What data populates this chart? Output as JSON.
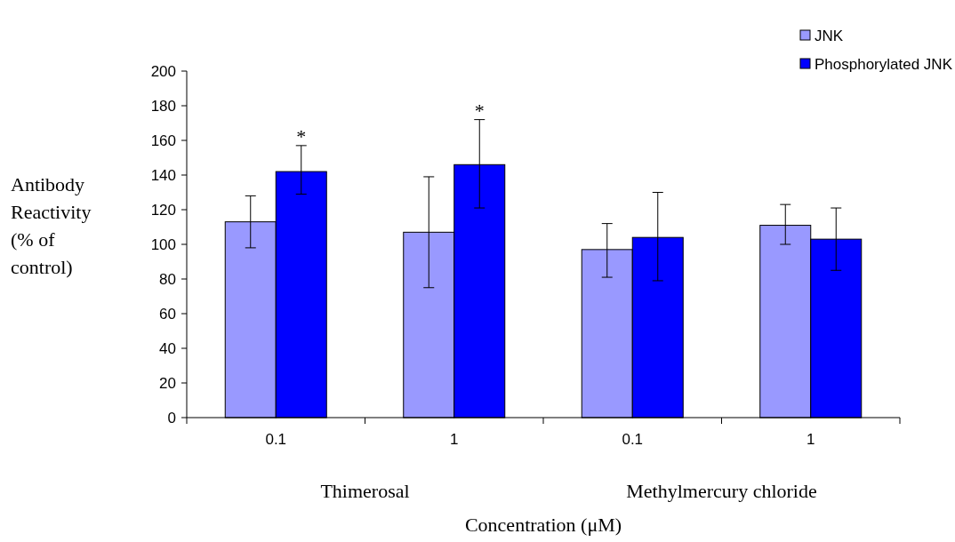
{
  "chart_data": {
    "type": "bar",
    "xlabel": "Concentration (μM)",
    "ylabel": "Antibody Reactivity (% of control)",
    "categories": [
      "0.1",
      "1",
      "0.1",
      "1"
    ],
    "series": [
      {
        "name": "JNK",
        "color": "#9999ff",
        "values": [
          113,
          107,
          97,
          111
        ],
        "errors": [
          [
            98,
            128
          ],
          [
            75,
            139
          ],
          [
            81,
            112
          ],
          [
            100,
            123
          ]
        ]
      },
      {
        "name": "Phosphorylated JNK",
        "color": "#0000ff",
        "values": [
          142,
          146,
          104,
          103
        ],
        "errors": [
          [
            129,
            157
          ],
          [
            121,
            172
          ],
          [
            79,
            130
          ],
          [
            85,
            121
          ]
        ]
      }
    ],
    "ylim": [
      0,
      200
    ],
    "yticks": [
      0,
      20,
      40,
      60,
      80,
      100,
      120,
      140,
      160,
      180,
      200
    ],
    "legend": "top right",
    "annotations": [
      "*",
      "*",
      "Thimerosal",
      "Methylmercury chloride"
    ]
  }
}
